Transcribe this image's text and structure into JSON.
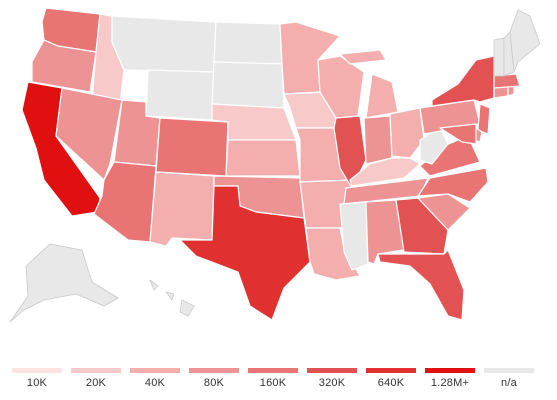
{
  "legend": {
    "items": [
      {
        "label": "10K",
        "color": "#fbe3e3"
      },
      {
        "label": "20K",
        "color": "#f8c9c9"
      },
      {
        "label": "40K",
        "color": "#f4aeae"
      },
      {
        "label": "80K",
        "color": "#ee9393"
      },
      {
        "label": "160K",
        "color": "#e97474"
      },
      {
        "label": "320K",
        "color": "#e35252"
      },
      {
        "label": "640K",
        "color": "#e03030"
      },
      {
        "label": "1.28M+",
        "color": "#e01010"
      },
      {
        "label": "n/a",
        "color": "#e8e8e8"
      }
    ]
  },
  "states": [
    {
      "id": "WA",
      "bin": 4
    },
    {
      "id": "OR",
      "bin": 3
    },
    {
      "id": "CA",
      "bin": 7
    },
    {
      "id": "ID",
      "bin": 1
    },
    {
      "id": "NV",
      "bin": 3
    },
    {
      "id": "MT",
      "bin": 8
    },
    {
      "id": "WY",
      "bin": 8
    },
    {
      "id": "UT",
      "bin": 3
    },
    {
      "id": "AZ",
      "bin": 4
    },
    {
      "id": "CO",
      "bin": 4
    },
    {
      "id": "NM",
      "bin": 2
    },
    {
      "id": "ND",
      "bin": 8
    },
    {
      "id": "SD",
      "bin": 8
    },
    {
      "id": "NE",
      "bin": 1
    },
    {
      "id": "KS",
      "bin": 2
    },
    {
      "id": "OK",
      "bin": 3
    },
    {
      "id": "TX",
      "bin": 6
    },
    {
      "id": "MN",
      "bin": 2
    },
    {
      "id": "IA",
      "bin": 1
    },
    {
      "id": "MO",
      "bin": 2
    },
    {
      "id": "AR",
      "bin": 2
    },
    {
      "id": "LA",
      "bin": 2
    },
    {
      "id": "WI",
      "bin": 2
    },
    {
      "id": "IL",
      "bin": 5
    },
    {
      "id": "MS",
      "bin": 8
    },
    {
      "id": "MI",
      "bin": 2
    },
    {
      "id": "IN",
      "bin": 3
    },
    {
      "id": "OH",
      "bin": 2
    },
    {
      "id": "KY",
      "bin": 1
    },
    {
      "id": "TN",
      "bin": 3
    },
    {
      "id": "AL",
      "bin": 3
    },
    {
      "id": "GA",
      "bin": 5
    },
    {
      "id": "FL",
      "bin": 5
    },
    {
      "id": "SC",
      "bin": 3
    },
    {
      "id": "NC",
      "bin": 4
    },
    {
      "id": "VA",
      "bin": 4
    },
    {
      "id": "WV",
      "bin": 8
    },
    {
      "id": "PA",
      "bin": 3
    },
    {
      "id": "NY",
      "bin": 5
    },
    {
      "id": "VT",
      "bin": 8
    },
    {
      "id": "NH",
      "bin": 8
    },
    {
      "id": "ME",
      "bin": 8
    },
    {
      "id": "MA",
      "bin": 4
    },
    {
      "id": "CT",
      "bin": 3
    },
    {
      "id": "RI",
      "bin": 3
    },
    {
      "id": "NJ",
      "bin": 4
    },
    {
      "id": "DE",
      "bin": 3
    },
    {
      "id": "MD",
      "bin": 4
    },
    {
      "id": "AK",
      "bin": 8
    },
    {
      "id": "HI",
      "bin": 8
    }
  ]
}
